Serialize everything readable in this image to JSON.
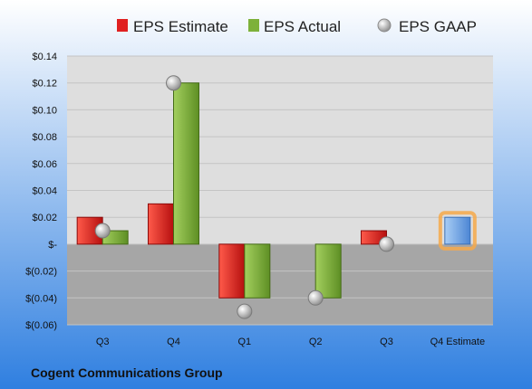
{
  "company": "Cogent Communications Group",
  "colors": {
    "estimate": "#e02020",
    "actual": "#7db13a",
    "gaap": "#b8b8b8",
    "future_estimate": "#6fa6e6",
    "future_glow": "#f6a94a",
    "background_top": "#ffffff",
    "background_bottom": "#2f7fe0",
    "plot_upper": "#dedede",
    "plot_lower": "#a6a6a6"
  },
  "chart_data": {
    "type": "bar",
    "categories": [
      "Q3",
      "Q4",
      "Q1",
      "Q2",
      "Q3",
      "Q4 Estimate"
    ],
    "series": [
      {
        "name": "EPS Estimate",
        "values": [
          0.02,
          0.03,
          -0.04,
          null,
          0.01,
          null
        ]
      },
      {
        "name": "EPS Actual",
        "values": [
          0.01,
          0.12,
          -0.04,
          -0.04,
          null,
          null
        ]
      },
      {
        "name": "EPS GAAP",
        "values": [
          0.01,
          0.12,
          -0.05,
          -0.04,
          0.0,
          null
        ]
      }
    ],
    "future_estimate": {
      "category": "Q4 Estimate",
      "value": 0.02
    },
    "ylim": [
      -0.06,
      0.14
    ],
    "yticks": [
      0.14,
      0.12,
      0.1,
      0.08,
      0.06,
      0.04,
      0.02,
      0,
      -0.02,
      -0.04,
      -0.06
    ],
    "ytick_labels": [
      "$0.14",
      "$0.12",
      "$0.10",
      "$0.08",
      "$0.06",
      "$0.04",
      "$0.02",
      "$-",
      "$(0.02)",
      "$(0.04)",
      "$(0.06)"
    ],
    "grid": true,
    "legend_position": "top"
  }
}
